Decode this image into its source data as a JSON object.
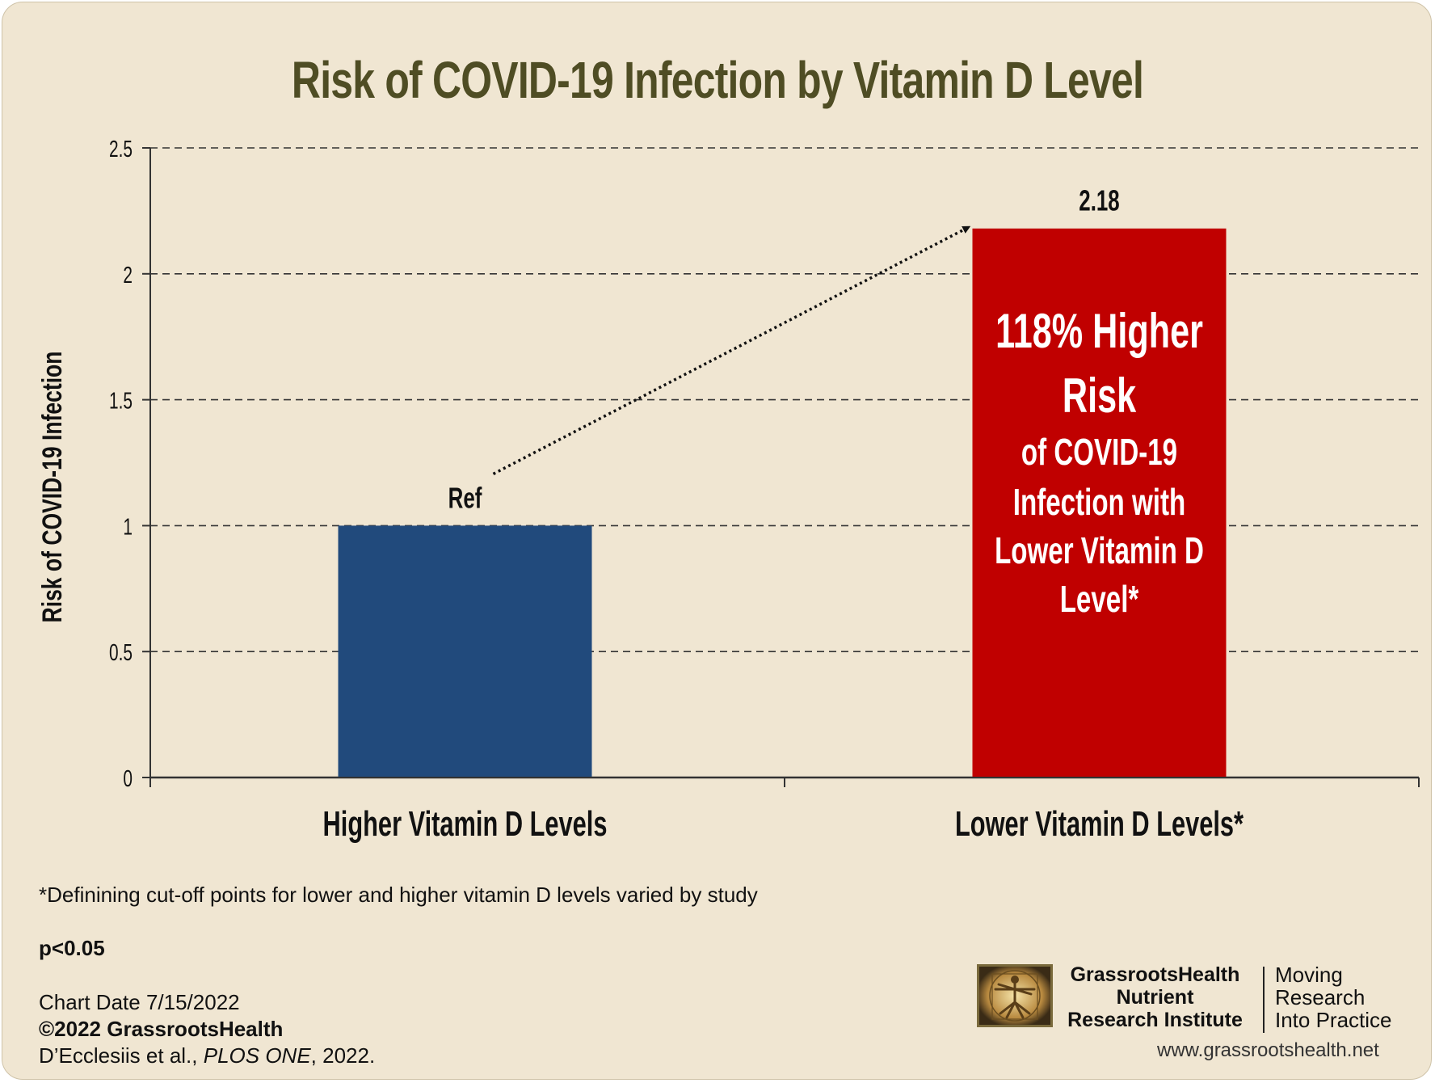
{
  "chart_data": {
    "type": "bar",
    "title": "Risk of COVID-19 Infection by Vitamin D Level",
    "ylabel": "Risk of COVID-19 Infection",
    "xlabel": "",
    "categories": [
      "Higher Vitamin D Levels",
      "Lower Vitamin D Levels*"
    ],
    "values": [
      1,
      2.18
    ],
    "data_labels": [
      "Ref",
      "2.18"
    ],
    "colors": [
      "#214a7c",
      "#c00000"
    ],
    "ylim": [
      0,
      2.5
    ],
    "yticks": [
      "0",
      "0.5",
      "1",
      "1.5",
      "2",
      "2.5"
    ],
    "ytick_values": [
      0,
      0.5,
      1,
      1.5,
      2,
      2.5
    ],
    "grid": true,
    "grid_style": "dashed",
    "annotation": {
      "lines": [
        "118% Higher",
        "Risk",
        "of COVID-19",
        "Infection with",
        "Lower Vitamin D",
        "Level*"
      ],
      "arrow": "dotted arrow from Ref to 2.18"
    }
  },
  "footnote": "*Definining cut-off points for lower and higher vitamin D levels varied by study",
  "p_value": "p<0.05",
  "credits": {
    "chart_date": "Chart Date 7/15/2022",
    "copyright": "©2022 GrassrootsHealth",
    "citation_authors": "D’Ecclesiis et al., ",
    "citation_journal": "PLOS ONE",
    "citation_year": ", 2022."
  },
  "branding": {
    "org_line1": "GrassrootsHealth",
    "org_line2": "Nutrient",
    "org_line3": "Research Institute",
    "tagline_line1": "Moving",
    "tagline_line2": "Research",
    "tagline_line3": "Into Practice",
    "website": "www.grassrootshealth.net"
  }
}
